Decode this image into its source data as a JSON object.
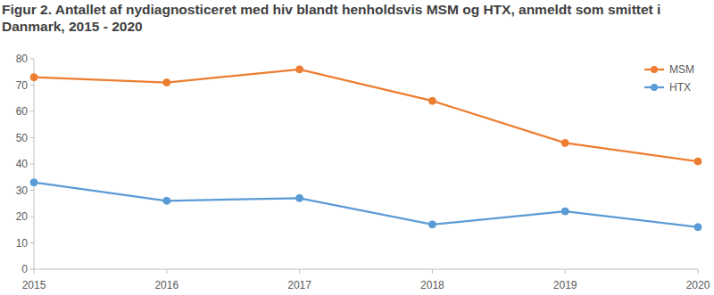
{
  "chart_data": {
    "type": "line",
    "title": "Figur 2. Antallet af nydiagnosticeret med hiv blandt henholdsvis MSM og HTX, anmeldt som smittet i Danmark, 2015 - 2020",
    "x": [
      2015,
      2016,
      2017,
      2018,
      2019,
      2020
    ],
    "xlim": [
      2015,
      2020
    ],
    "xticks": [
      2015,
      2016,
      2017,
      2018,
      2019,
      2020
    ],
    "ylim": [
      0,
      80
    ],
    "yticks": [
      0,
      10,
      20,
      30,
      40,
      50,
      60,
      70,
      80
    ],
    "grid": false,
    "legend": "upper-right",
    "series": [
      {
        "name": "MSM",
        "color": "#ed7d31",
        "marker": "circle",
        "values": [
          73,
          71,
          76,
          64,
          48,
          41
        ]
      },
      {
        "name": "HTX",
        "color": "#5b9bd5",
        "marker": "circle",
        "values": [
          33,
          26,
          27,
          17,
          22,
          16
        ]
      }
    ]
  }
}
